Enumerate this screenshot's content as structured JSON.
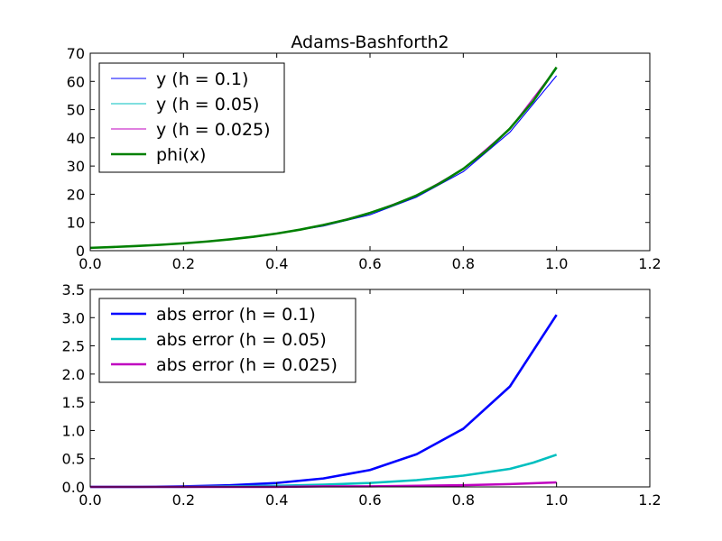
{
  "chart_data": [
    {
      "type": "line",
      "title": "Adams-Bashforth2",
      "xlabel": "",
      "ylabel": "",
      "xlim": [
        0.0,
        1.2
      ],
      "ylim": [
        0,
        70
      ],
      "xticks": [
        "0.0",
        "0.2",
        "0.4",
        "0.6",
        "0.8",
        "1.0",
        "1.2"
      ],
      "yticks": [
        "0",
        "10",
        "20",
        "30",
        "40",
        "50",
        "60",
        "70"
      ],
      "grid": false,
      "legend_position": "top-left",
      "series": [
        {
          "name": "y (h = 0.1)",
          "color": "#0000ff",
          "width": "thin",
          "x": [
            0,
            0.1,
            0.2,
            0.3,
            0.4,
            0.5,
            0.6,
            0.7,
            0.8,
            0.9,
            1.0
          ],
          "y": [
            1.0,
            1.6,
            2.55,
            3.97,
            5.98,
            8.74,
            12.7,
            19.0,
            28.0,
            42.0,
            62.0
          ]
        },
        {
          "name": "y (h = 0.05)",
          "color": "#00bfbf",
          "width": "thin",
          "x": [
            0,
            0.05,
            0.1,
            0.15,
            0.2,
            0.25,
            0.3,
            0.35,
            0.4,
            0.45,
            0.5,
            0.55,
            0.6,
            0.65,
            0.7,
            0.75,
            0.8,
            0.85,
            0.9,
            0.95,
            1.0
          ],
          "y": [
            1.0,
            1.3,
            1.65,
            2.07,
            2.57,
            3.2,
            4.0,
            4.9,
            6.04,
            7.4,
            9.0,
            10.9,
            13.2,
            16.0,
            19.5,
            23.7,
            28.9,
            35.3,
            43.1,
            52.8,
            64.5
          ]
        },
        {
          "name": "y (h = 0.025)",
          "color": "#bf00bf",
          "width": "thin",
          "x": [
            0,
            0.1,
            0.2,
            0.3,
            0.4,
            0.5,
            0.6,
            0.7,
            0.8,
            0.9,
            1.0
          ],
          "y": [
            1.0,
            1.66,
            2.6,
            4.0,
            6.08,
            9.1,
            13.4,
            19.6,
            29.0,
            43.3,
            64.9
          ]
        },
        {
          "name": "phi(x)",
          "color": "#008000",
          "width": "thick",
          "x": [
            0,
            0.05,
            0.1,
            0.15,
            0.2,
            0.25,
            0.3,
            0.35,
            0.4,
            0.45,
            0.5,
            0.55,
            0.6,
            0.65,
            0.7,
            0.75,
            0.8,
            0.85,
            0.9,
            0.95,
            1.0
          ],
          "y": [
            1.0,
            1.3,
            1.66,
            2.08,
            2.6,
            3.23,
            4.02,
            4.93,
            6.08,
            7.45,
            9.1,
            11.0,
            13.4,
            16.2,
            19.6,
            23.9,
            29.0,
            35.5,
            43.3,
            53.0,
            65.0
          ]
        }
      ]
    },
    {
      "type": "line",
      "title": "",
      "xlabel": "",
      "ylabel": "",
      "xlim": [
        0.0,
        1.2
      ],
      "ylim": [
        0,
        3.5
      ],
      "xticks": [
        "0.0",
        "0.2",
        "0.4",
        "0.6",
        "0.8",
        "1.0",
        "1.2"
      ],
      "yticks": [
        "0.0",
        "0.5",
        "1.0",
        "1.5",
        "2.0",
        "2.5",
        "3.0",
        "3.5"
      ],
      "grid": false,
      "legend_position": "top-left",
      "series": [
        {
          "name": "abs error (h = 0.1)",
          "color": "#0000ff",
          "width": "thick",
          "x": [
            0,
            0.1,
            0.2,
            0.3,
            0.4,
            0.5,
            0.6,
            0.7,
            0.8,
            0.9,
            1.0
          ],
          "y": [
            0.0,
            0.0,
            0.01,
            0.03,
            0.07,
            0.15,
            0.3,
            0.58,
            1.03,
            1.78,
            3.05
          ]
        },
        {
          "name": "abs error (h = 0.05)",
          "color": "#00bfbf",
          "width": "thick",
          "x": [
            0,
            0.1,
            0.2,
            0.3,
            0.4,
            0.5,
            0.6,
            0.7,
            0.8,
            0.9,
            0.95,
            1.0
          ],
          "y": [
            0.0,
            0.0,
            0.0,
            0.01,
            0.02,
            0.04,
            0.07,
            0.12,
            0.2,
            0.32,
            0.43,
            0.57
          ]
        },
        {
          "name": "abs error (h = 0.025)",
          "color": "#bf00bf",
          "width": "thick",
          "x": [
            0,
            0.1,
            0.2,
            0.3,
            0.4,
            0.5,
            0.6,
            0.7,
            0.8,
            0.9,
            1.0
          ],
          "y": [
            0.0,
            0.0,
            0.0,
            0.0,
            0.0,
            0.01,
            0.01,
            0.02,
            0.03,
            0.05,
            0.08
          ]
        }
      ]
    }
  ]
}
